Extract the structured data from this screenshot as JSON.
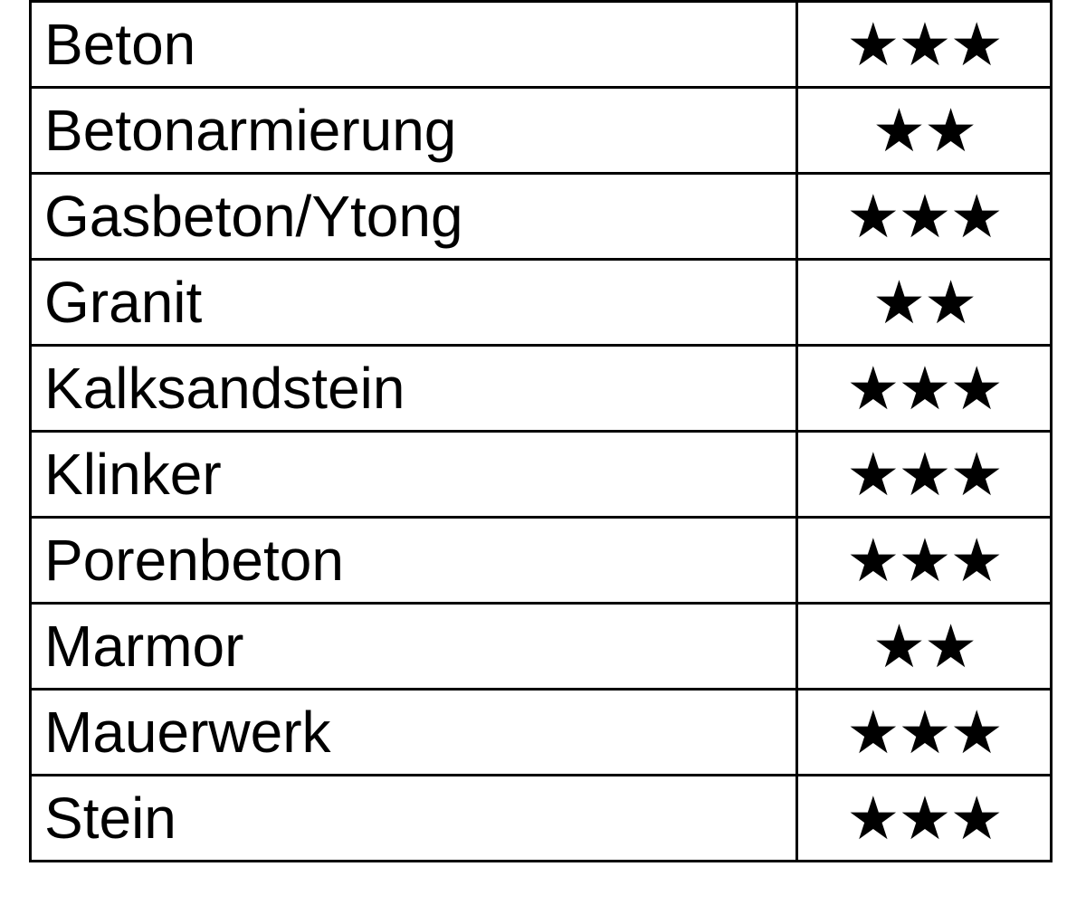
{
  "table": {
    "rows": [
      [
        "Beton",
        "★★★"
      ],
      [
        "Betonarmierung",
        "★★"
      ],
      [
        "Gasbeton/Ytong",
        "★★★"
      ],
      [
        "Granit",
        "★★"
      ],
      [
        "Kalksandstein",
        "★★★"
      ],
      [
        "Klinker",
        "★★★"
      ],
      [
        "Porenbeton",
        "★★★"
      ],
      [
        "Marmor",
        "★★"
      ],
      [
        "Mauerwerk",
        "★★★"
      ],
      [
        "Stein",
        "★★★"
      ]
    ]
  }
}
